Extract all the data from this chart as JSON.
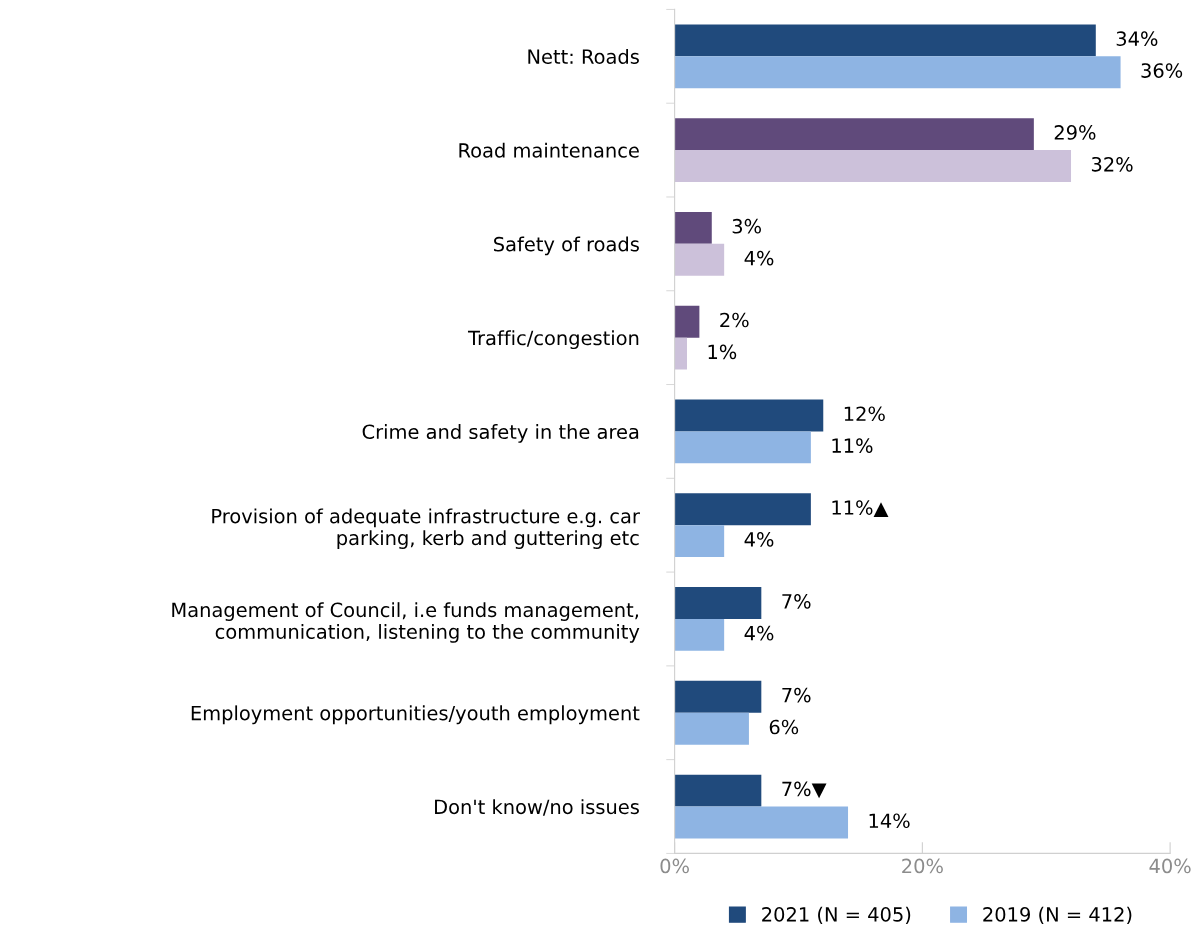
{
  "chart_data": {
    "type": "bar",
    "orientation": "horizontal",
    "categories": [
      "Nett: Roads",
      "Road maintenance",
      "Safety of roads",
      "Traffic/congestion",
      "Crime and safety in the area",
      "Provision of adequate infrastructure e.g. car\nparking, kerb and guttering etc",
      "Management of Council, i.e funds management,\ncommunication, listening to the community",
      "Employment opportunities/youth employment",
      "Don't know/no issues"
    ],
    "series": [
      {
        "name": "2021 (N = 405)",
        "color": "#204a7c",
        "colors": [
          "#204a7c",
          "#604a7b",
          "#604a7b",
          "#604a7b",
          "#204a7c",
          "#204a7c",
          "#204a7c",
          "#204a7c",
          "#204a7c"
        ],
        "values": [
          34,
          29,
          3,
          2,
          12,
          11,
          7,
          7,
          7
        ],
        "value_labels": [
          "34%",
          "29%",
          "3%",
          "2%",
          "12%",
          "11%▲",
          "7%",
          "7%",
          "7%▼"
        ]
      },
      {
        "name": "2019 (N = 412)",
        "color": "#8eb4e3",
        "colors": [
          "#8eb4e3",
          "#ccc1da",
          "#ccc1da",
          "#ccc1da",
          "#8eb4e3",
          "#8eb4e3",
          "#8eb4e3",
          "#8eb4e3",
          "#8eb4e3"
        ],
        "values": [
          36,
          32,
          4,
          1,
          11,
          4,
          4,
          6,
          14
        ],
        "value_labels": [
          "36%",
          "32%",
          "4%",
          "1%",
          "11%",
          "4%",
          "4%",
          "6%",
          "14%"
        ]
      }
    ],
    "xlim": [
      0,
      40
    ],
    "xticks": [
      {
        "value": 0,
        "label": "0%"
      },
      {
        "value": 20,
        "label": "20%"
      },
      {
        "value": 40,
        "label": "40%"
      }
    ],
    "grid": false,
    "legend": "bottom"
  }
}
